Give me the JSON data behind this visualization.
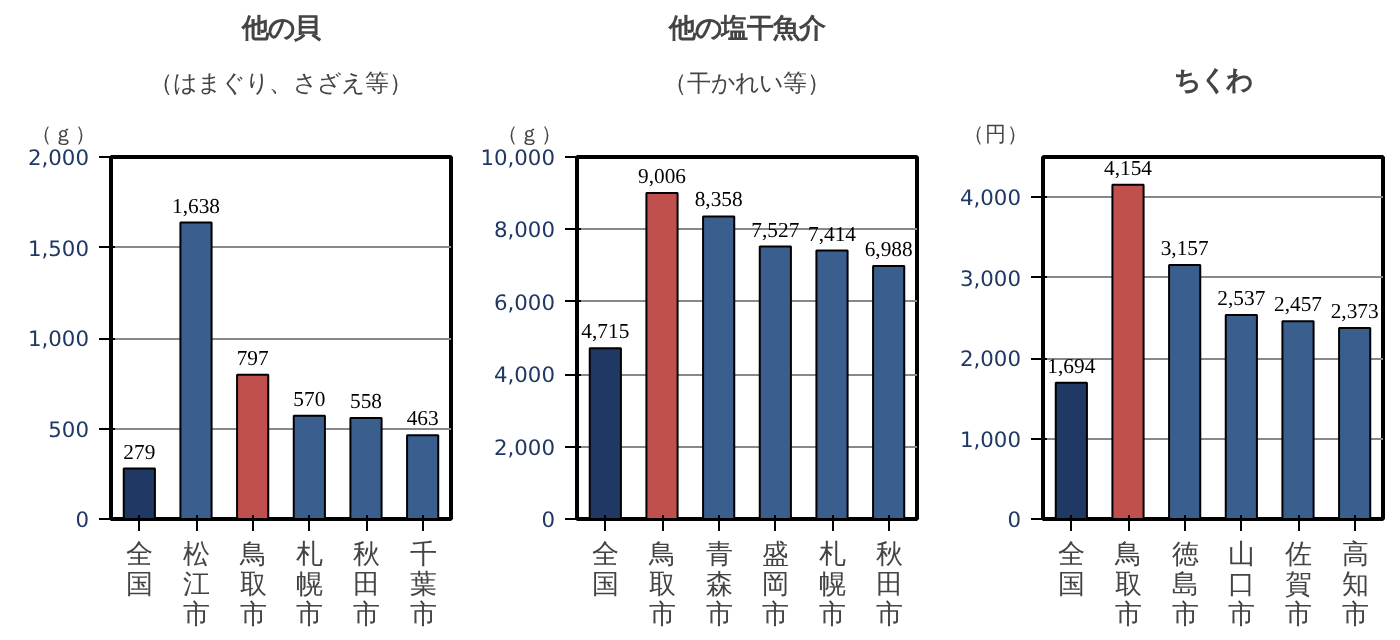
{
  "chart_data": [
    {
      "type": "bar",
      "title": "他の貝",
      "subtitle": "（はまぐり、さざえ等）",
      "ylabel": "（ｇ）",
      "categories": [
        "全国",
        "松江市",
        "鳥取市",
        "札幌市",
        "秋田市",
        "千葉市"
      ],
      "values": [
        279,
        1638,
        797,
        570,
        558,
        463
      ],
      "value_labels": [
        "279",
        "1,638",
        "797",
        "570",
        "558",
        "463"
      ],
      "colors": [
        "#1f3864",
        "#3a5f8f",
        "#c0504d",
        "#3a5f8f",
        "#3a5f8f",
        "#3a5f8f"
      ],
      "ylim": [
        0,
        2000
      ],
      "yticks": [
        {
          "value": 0,
          "label": "0"
        },
        {
          "value": 500,
          "label": "500"
        },
        {
          "value": 1000,
          "label": "1,000"
        },
        {
          "value": 1500,
          "label": "1,500"
        },
        {
          "value": 2000,
          "label": "2,000"
        }
      ],
      "grid": "y"
    },
    {
      "type": "bar",
      "title": "他の塩干魚介",
      "subtitle": "（干かれい等）",
      "ylabel": "（ｇ）",
      "categories": [
        "全国",
        "鳥取市",
        "青森市",
        "盛岡市",
        "札幌市",
        "秋田市"
      ],
      "values": [
        4715,
        9006,
        8358,
        7527,
        7414,
        6988
      ],
      "value_labels": [
        "4,715",
        "9,006",
        "8,358",
        "7,527",
        "7,414",
        "6,988"
      ],
      "colors": [
        "#1f3864",
        "#c0504d",
        "#3a5f8f",
        "#3a5f8f",
        "#3a5f8f",
        "#3a5f8f"
      ],
      "ylim": [
        0,
        10000
      ],
      "yticks": [
        {
          "value": 0,
          "label": "0"
        },
        {
          "value": 2000,
          "label": "2,000"
        },
        {
          "value": 4000,
          "label": "4,000"
        },
        {
          "value": 6000,
          "label": "6,000"
        },
        {
          "value": 8000,
          "label": "8,000"
        },
        {
          "value": 10000,
          "label": "10,000"
        }
      ],
      "grid": "y"
    },
    {
      "type": "bar",
      "title": "ちくわ",
      "ylabel": "（円）",
      "categories": [
        "全国",
        "鳥取市",
        "徳島市",
        "山口市",
        "佐賀市",
        "高知市"
      ],
      "values": [
        1694,
        4154,
        3157,
        2537,
        2457,
        2373
      ],
      "value_labels": [
        "1,694",
        "4,154",
        "3,157",
        "2,537",
        "2,457",
        "2,373"
      ],
      "colors": [
        "#1f3864",
        "#c0504d",
        "#3a5f8f",
        "#3a5f8f",
        "#3a5f8f",
        "#3a5f8f"
      ],
      "ylim": [
        0,
        4500
      ],
      "yticks": [
        {
          "value": 0,
          "label": "0"
        },
        {
          "value": 1000,
          "label": "1,000"
        },
        {
          "value": 2000,
          "label": "2,000"
        },
        {
          "value": 3000,
          "label": "3,000"
        },
        {
          "value": 4000,
          "label": "4,000"
        }
      ],
      "grid": "y"
    }
  ]
}
